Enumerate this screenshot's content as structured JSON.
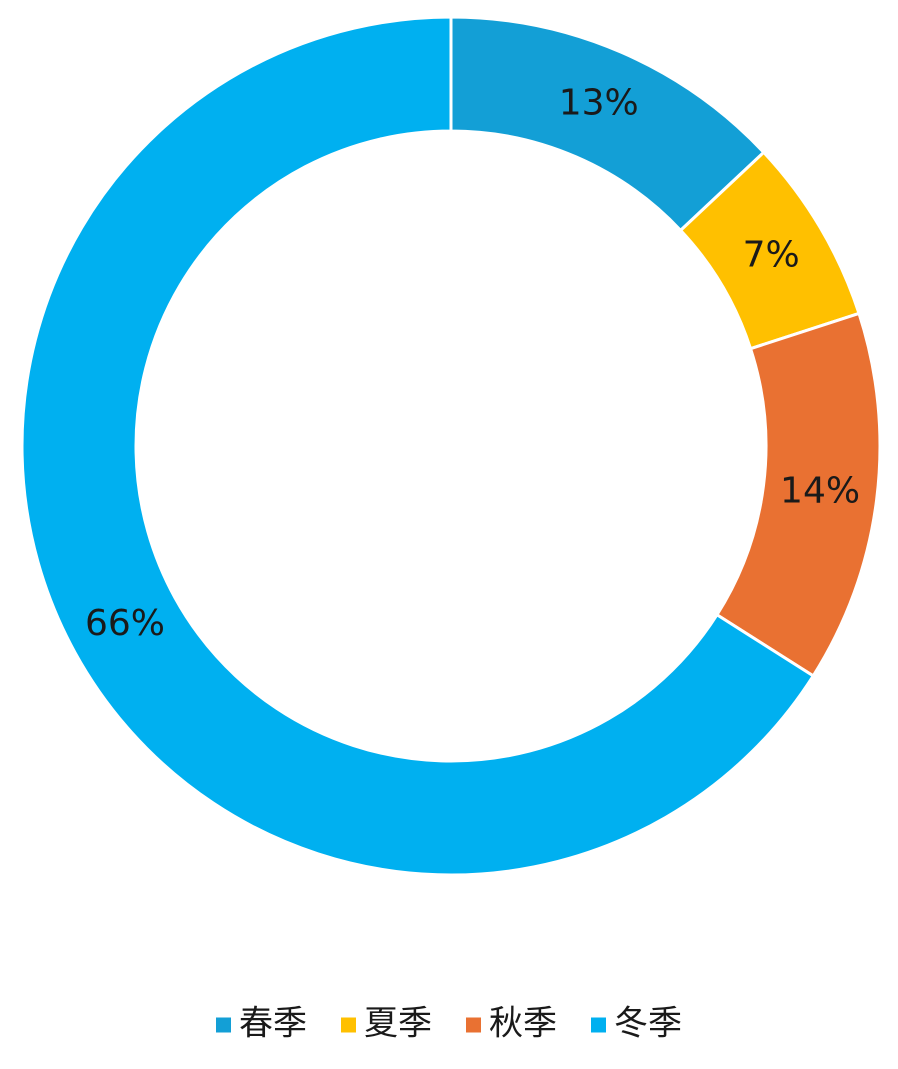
{
  "chart_data": {
    "type": "donut",
    "categories": [
      "春季",
      "夏季",
      "秋季",
      "冬季"
    ],
    "values": [
      13,
      7,
      14,
      66
    ],
    "value_labels": [
      "13%",
      "7%",
      "14%",
      "66%"
    ],
    "colors": [
      "#139fd6",
      "#ffc000",
      "#e97132",
      "#00b0f0"
    ],
    "legend": "bottom"
  }
}
